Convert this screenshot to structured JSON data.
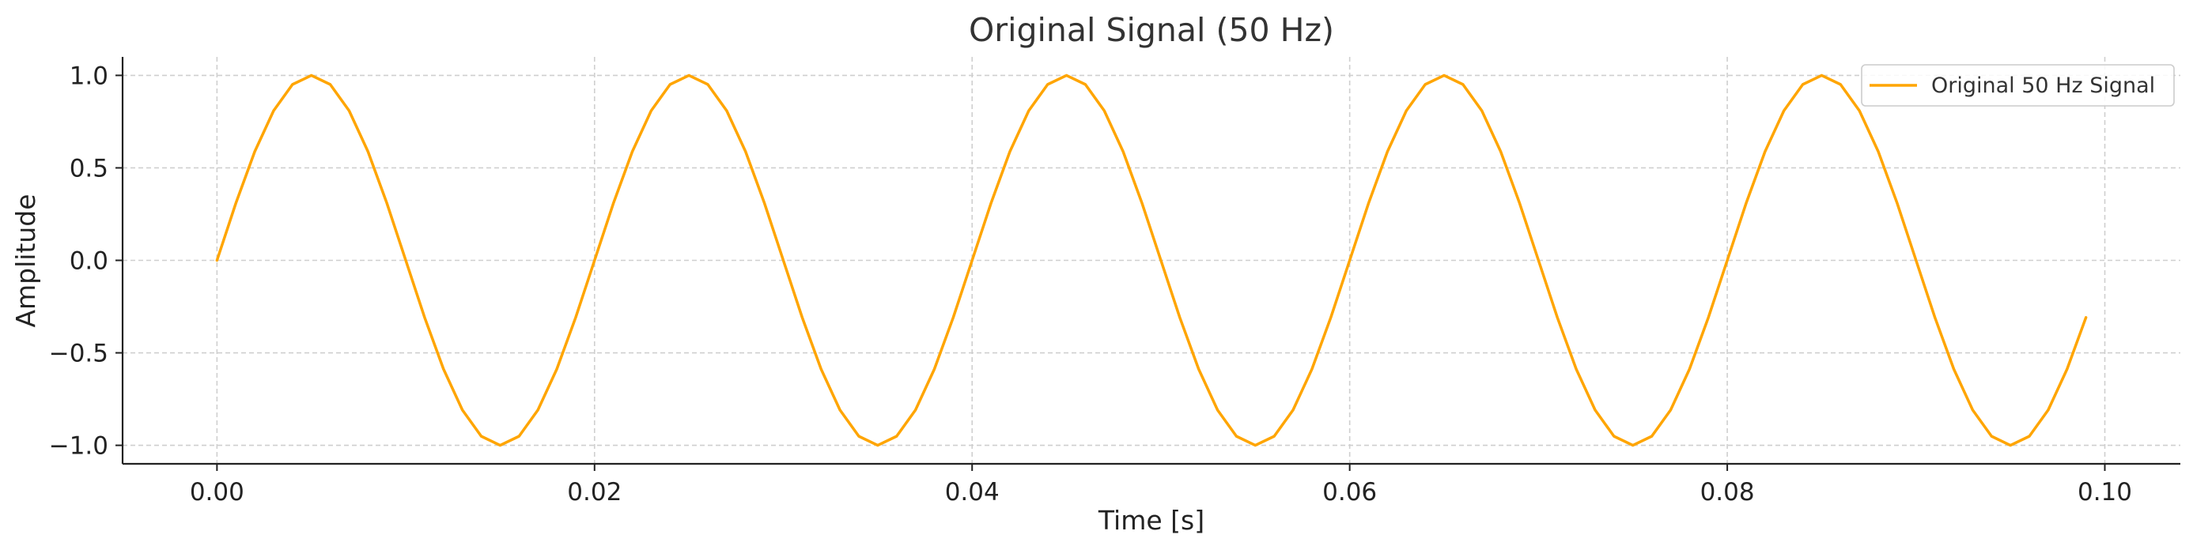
{
  "chart_data": {
    "type": "line",
    "title": "Original Signal (50 Hz)",
    "xlabel": "Time [s]",
    "ylabel": "Amplitude",
    "xlim": [
      -0.005,
      0.104
    ],
    "ylim": [
      -1.1,
      1.1
    ],
    "xticks": [
      0.0,
      0.02,
      0.04,
      0.06,
      0.08,
      0.1
    ],
    "xtick_labels": [
      "0.00",
      "0.02",
      "0.04",
      "0.06",
      "0.08",
      "0.10"
    ],
    "yticks": [
      -1.0,
      -0.5,
      0.0,
      0.5,
      1.0
    ],
    "ytick_labels": [
      "−1.0",
      "−0.5",
      "0.0",
      "0.5",
      "1.0"
    ],
    "grid": true,
    "legend_position": "top-right",
    "series": [
      {
        "name": "Original 50 Hz Signal",
        "color": "#FFA500",
        "x": [
          0.0,
          0.001,
          0.002,
          0.003,
          0.004,
          0.005,
          0.006,
          0.007,
          0.008,
          0.009,
          0.01,
          0.011,
          0.012,
          0.013,
          0.014,
          0.015,
          0.016,
          0.017,
          0.018,
          0.019,
          0.02,
          0.021,
          0.022,
          0.023,
          0.024,
          0.025,
          0.026,
          0.027,
          0.028,
          0.029,
          0.03,
          0.031,
          0.032,
          0.033,
          0.034,
          0.035,
          0.036,
          0.037,
          0.038,
          0.039,
          0.04,
          0.041,
          0.042,
          0.043,
          0.044,
          0.045,
          0.046,
          0.047,
          0.048,
          0.049,
          0.05,
          0.051,
          0.052,
          0.053,
          0.054,
          0.055,
          0.056,
          0.057,
          0.058,
          0.059,
          0.06,
          0.061,
          0.062,
          0.063,
          0.064,
          0.065,
          0.066,
          0.067,
          0.068,
          0.069,
          0.07,
          0.071,
          0.072,
          0.073,
          0.074,
          0.075,
          0.076,
          0.077,
          0.078,
          0.079,
          0.08,
          0.081,
          0.082,
          0.083,
          0.084,
          0.085,
          0.086,
          0.087,
          0.088,
          0.089,
          0.09,
          0.091,
          0.092,
          0.093,
          0.094,
          0.095,
          0.096,
          0.097,
          0.098,
          0.099
        ],
        "y": [
          0.0,
          0.309,
          0.588,
          0.809,
          0.951,
          1.0,
          0.951,
          0.809,
          0.588,
          0.309,
          0.0,
          -0.309,
          -0.588,
          -0.809,
          -0.951,
          -1.0,
          -0.951,
          -0.809,
          -0.588,
          -0.309,
          0.0,
          0.309,
          0.588,
          0.809,
          0.951,
          1.0,
          0.951,
          0.809,
          0.588,
          0.309,
          0.0,
          -0.309,
          -0.588,
          -0.809,
          -0.951,
          -1.0,
          -0.951,
          -0.809,
          -0.588,
          -0.309,
          0.0,
          0.309,
          0.588,
          0.809,
          0.951,
          1.0,
          0.951,
          0.809,
          0.588,
          0.309,
          0.0,
          -0.309,
          -0.588,
          -0.809,
          -0.951,
          -1.0,
          -0.951,
          -0.809,
          -0.588,
          -0.309,
          0.0,
          0.309,
          0.588,
          0.809,
          0.951,
          1.0,
          0.951,
          0.809,
          0.588,
          0.309,
          0.0,
          -0.309,
          -0.588,
          -0.809,
          -0.951,
          -1.0,
          -0.951,
          -0.809,
          -0.588,
          -0.309,
          0.0,
          0.309,
          0.588,
          0.809,
          0.951,
          1.0,
          0.951,
          0.809,
          0.588,
          0.309,
          0.0,
          -0.309,
          -0.588,
          -0.809,
          -0.951,
          -1.0,
          -0.951,
          -0.809,
          -0.588,
          -0.309
        ]
      }
    ]
  }
}
